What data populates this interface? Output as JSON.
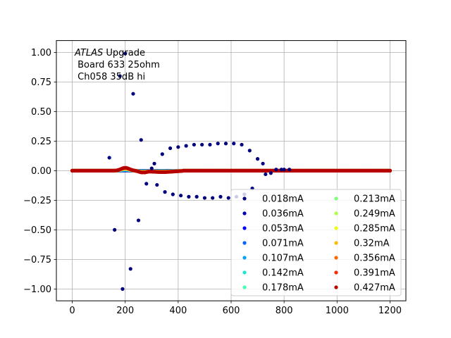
{
  "chart_data": {
    "type": "scatter",
    "title": "",
    "xlabel": "",
    "ylabel": "",
    "xlim": [
      -60,
      1260
    ],
    "ylim": [
      -1.1,
      1.1
    ],
    "x_ticks": [
      0,
      200,
      400,
      600,
      800,
      1000,
      1200
    ],
    "y_ticks": [
      -1.0,
      -0.75,
      -0.5,
      -0.25,
      0.0,
      0.25,
      0.5,
      0.75,
      1.0
    ],
    "x_tick_labels": [
      "0",
      "200",
      "400",
      "600",
      "800",
      "1000",
      "1200"
    ],
    "y_tick_labels": [
      "−1.00",
      "−0.75",
      "−0.50",
      "−0.25",
      "0.00",
      "0.25",
      "0.50",
      "0.75",
      "1.00"
    ],
    "grid": true,
    "legend_placement": "lower-right",
    "legend_columns": 2,
    "annotation": {
      "line1_italic": "ATLAS",
      "line1_rest": " Upgrade",
      "line2": " Board 633 25ohm",
      "line3": " Ch058 35dB hi"
    },
    "series": [
      {
        "name": "0.018mA",
        "color": "#00007f"
      },
      {
        "name": "0.036mA",
        "color": "#0000b6"
      },
      {
        "name": "0.053mA",
        "color": "#0000ff"
      },
      {
        "name": "0.071mA",
        "color": "#0064ff"
      },
      {
        "name": "0.107mA",
        "color": "#00a4ff"
      },
      {
        "name": "0.142mA",
        "color": "#1ce6db"
      },
      {
        "name": "0.178mA",
        "color": "#47ffb0"
      },
      {
        "name": "0.213mA",
        "color": "#7dff7a"
      },
      {
        "name": "0.249mA",
        "color": "#b0ff47"
      },
      {
        "name": "0.285mA",
        "color": "#ebff0c"
      },
      {
        "name": "0.32mA",
        "color": "#ffb900"
      },
      {
        "name": "0.356mA",
        "color": "#ff6800"
      },
      {
        "name": "0.391mA",
        "color": "#ff2900"
      },
      {
        "name": "0.427mA",
        "color": "#b60000"
      }
    ],
    "highlight_points": [
      {
        "x": 140,
        "y": 0.11
      },
      {
        "x": 160,
        "y": -0.5
      },
      {
        "x": 180,
        "y": 0.8
      },
      {
        "x": 190,
        "y": -1.0
      },
      {
        "x": 200,
        "y": 0.99
      },
      {
        "x": 220,
        "y": -0.83
      },
      {
        "x": 230,
        "y": 0.65
      },
      {
        "x": 250,
        "y": -0.42
      },
      {
        "x": 260,
        "y": 0.26
      },
      {
        "x": 280,
        "y": -0.11
      },
      {
        "x": 300,
        "y": 0.02
      },
      {
        "x": 310,
        "y": 0.06
      },
      {
        "x": 320,
        "y": -0.12
      },
      {
        "x": 340,
        "y": 0.14
      },
      {
        "x": 350,
        "y": -0.18
      },
      {
        "x": 370,
        "y": 0.19
      },
      {
        "x": 380,
        "y": -0.2
      },
      {
        "x": 400,
        "y": 0.2
      },
      {
        "x": 410,
        "y": -0.21
      },
      {
        "x": 430,
        "y": 0.21
      },
      {
        "x": 440,
        "y": -0.22
      },
      {
        "x": 460,
        "y": 0.22
      },
      {
        "x": 470,
        "y": -0.22
      },
      {
        "x": 490,
        "y": 0.22
      },
      {
        "x": 500,
        "y": -0.23
      },
      {
        "x": 520,
        "y": 0.22
      },
      {
        "x": 530,
        "y": -0.23
      },
      {
        "x": 550,
        "y": 0.23
      },
      {
        "x": 560,
        "y": -0.22
      },
      {
        "x": 580,
        "y": 0.23
      },
      {
        "x": 590,
        "y": -0.23
      },
      {
        "x": 610,
        "y": 0.23
      },
      {
        "x": 620,
        "y": -0.22
      },
      {
        "x": 640,
        "y": 0.22
      },
      {
        "x": 650,
        "y": -0.2
      },
      {
        "x": 670,
        "y": 0.17
      },
      {
        "x": 680,
        "y": -0.15
      },
      {
        "x": 700,
        "y": 0.1
      },
      {
        "x": 720,
        "y": 0.06
      },
      {
        "x": 730,
        "y": -0.03
      },
      {
        "x": 750,
        "y": -0.02
      },
      {
        "x": 770,
        "y": 0.01
      },
      {
        "x": 790,
        "y": 0.01
      },
      {
        "x": 800,
        "y": 0.01
      },
      {
        "x": 820,
        "y": 0.01
      }
    ],
    "baseline_cluster": {
      "x_start": 0,
      "x_end": 1200,
      "x_step": 5,
      "y": 0.0,
      "bump_center": 200,
      "bump_height": 0.025,
      "dip_center": 265,
      "dip_depth": -0.015
    }
  }
}
